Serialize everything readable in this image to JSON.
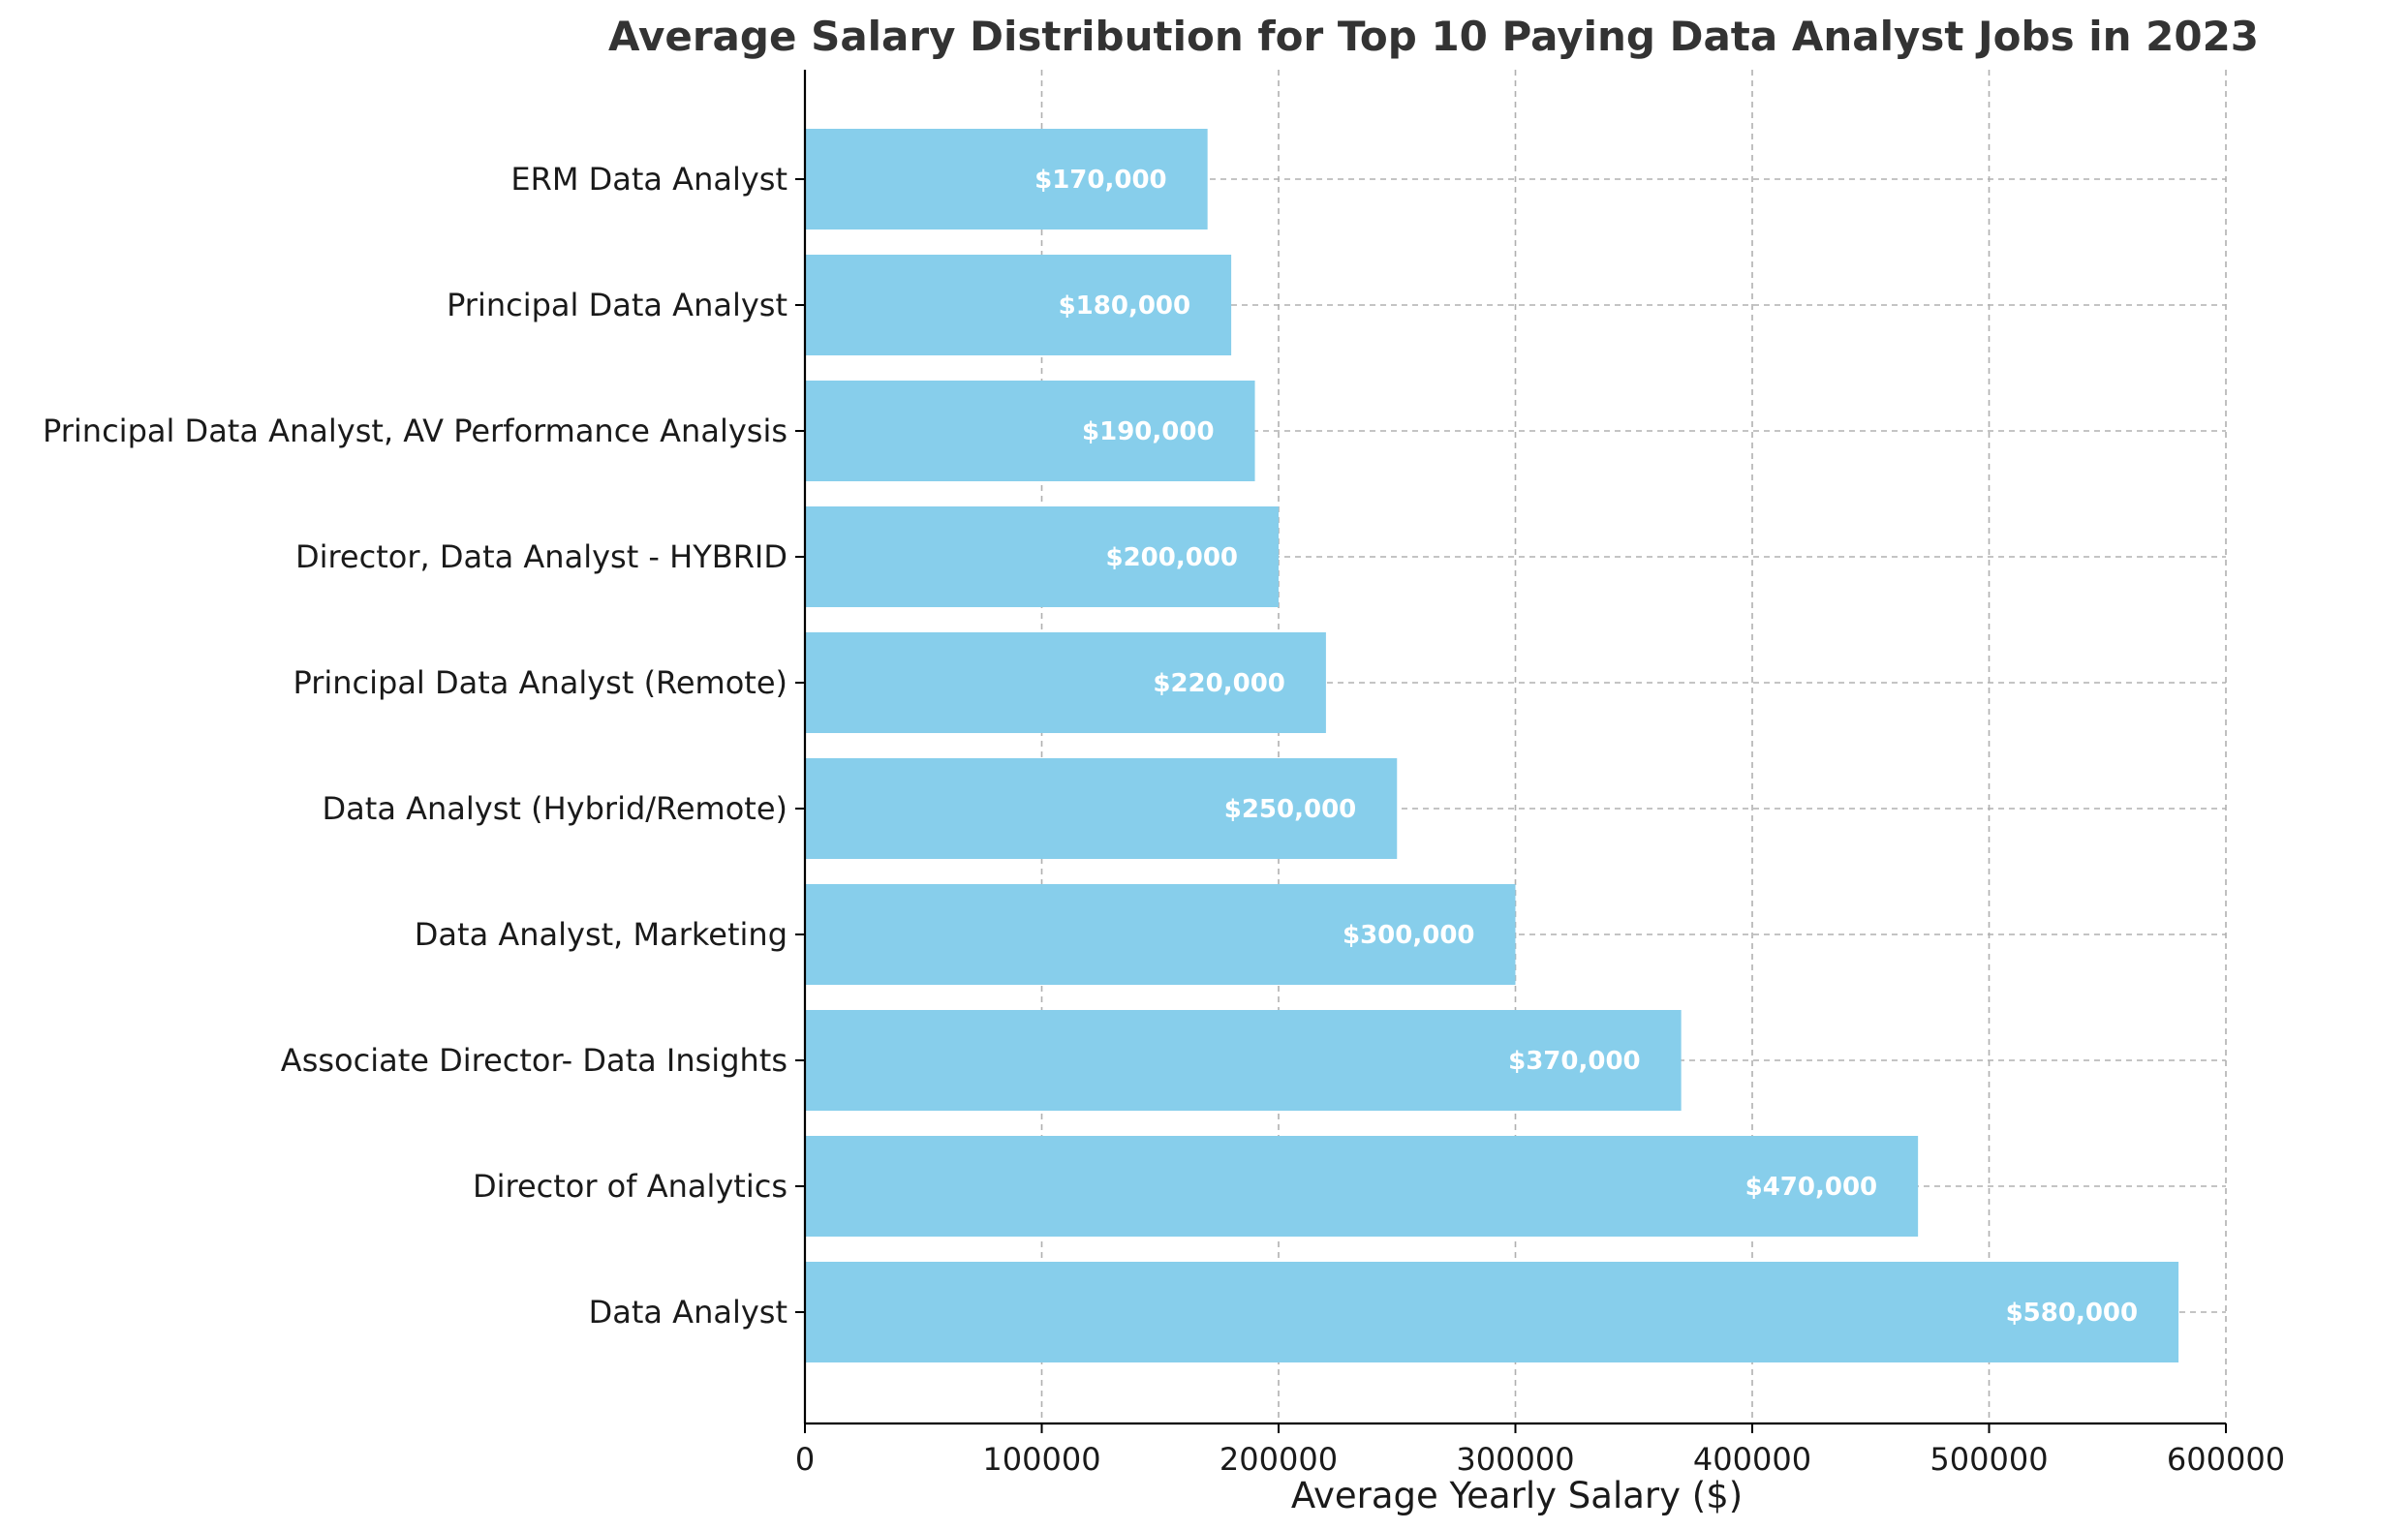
{
  "chart_data": {
    "type": "bar",
    "orientation": "horizontal",
    "title": "Average Salary Distribution for Top 10 Paying Data Analyst Jobs in 2023",
    "xlabel": "Average Yearly Salary ($)",
    "ylabel": "",
    "xlim": [
      0,
      600000
    ],
    "xticks": [
      "0",
      "100000",
      "200000",
      "300000",
      "400000",
      "500000",
      "600000"
    ],
    "xtick_values": [
      0,
      100000,
      200000,
      300000,
      400000,
      500000,
      600000
    ],
    "categories": [
      "Data Analyst",
      "Director of Analytics",
      "Associate Director- Data Insights",
      "Data Analyst, Marketing",
      "Data Analyst (Hybrid/Remote)",
      "Principal Data Analyst (Remote)",
      "Director, Data Analyst - HYBRID",
      "Principal Data Analyst, AV Performance Analysis",
      "Principal Data Analyst",
      "ERM Data Analyst"
    ],
    "values": [
      580000,
      470000,
      370000,
      300000,
      250000,
      220000,
      200000,
      190000,
      180000,
      170000
    ],
    "data_labels": [
      "$580,000",
      "$470,000",
      "$370,000",
      "$300,000",
      "$250,000",
      "$220,000",
      "$200,000",
      "$190,000",
      "$180,000",
      "$170,000"
    ],
    "bar_color": "#87CEEB",
    "grid": true,
    "grid_style": "dashed",
    "grid_color": "#b0b0b0",
    "legend": "none"
  }
}
